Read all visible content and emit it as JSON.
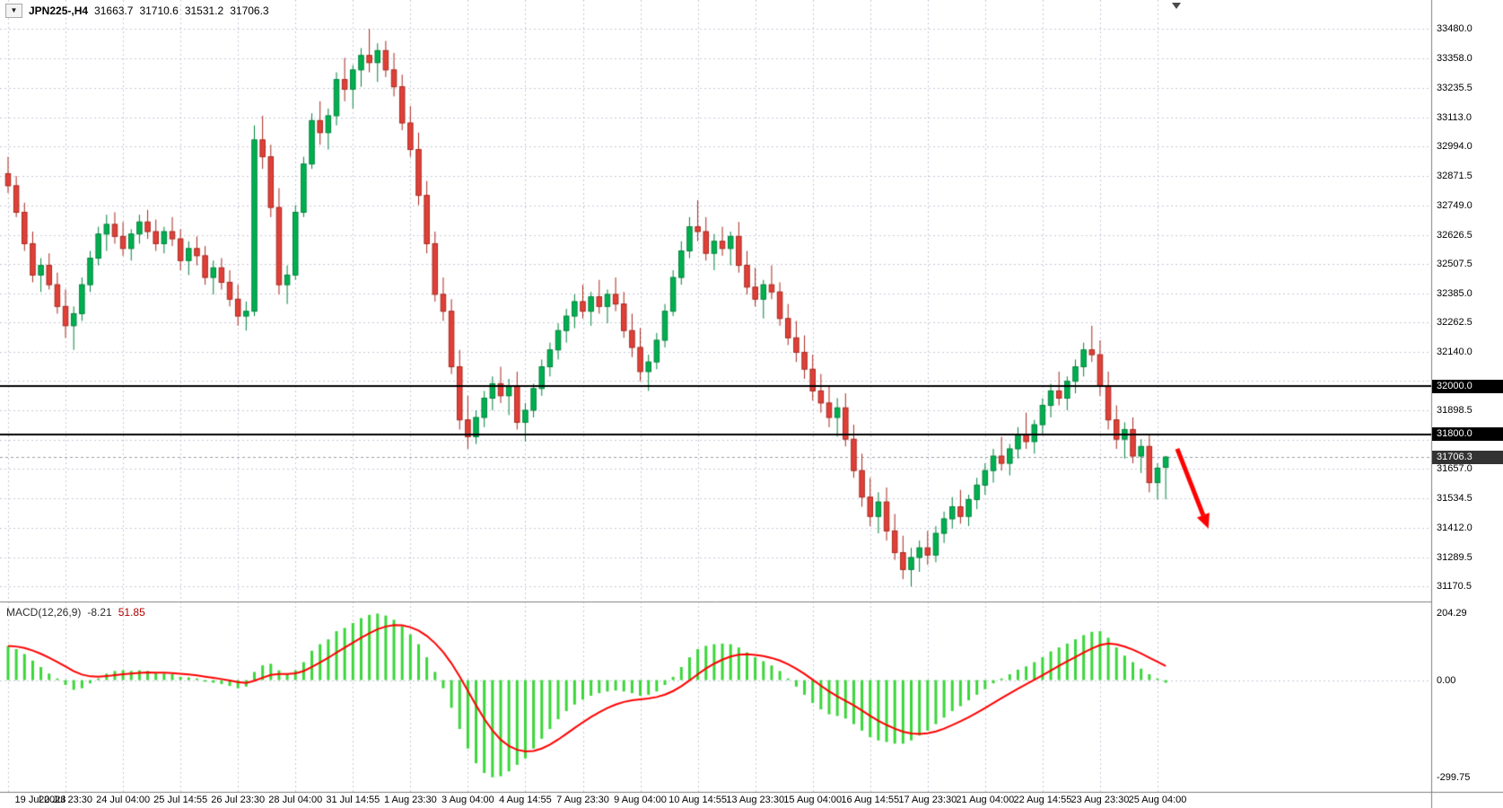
{
  "header": {
    "dropdown_icon": "▼",
    "symbol_period": "JPN225-,H4",
    "open": "31663.7",
    "high": "31710.6",
    "low": "31531.2",
    "close": "31706.3"
  },
  "indicator": {
    "name": "MACD(12,26,9)",
    "value": "-8.21",
    "signal": "51.85"
  },
  "colors": {
    "background": "#ffffff",
    "grid": "#c9c9da",
    "bull": "#00b050",
    "bear": "#e04038",
    "bull_border": "#00843c",
    "bear_border": "#a8281e",
    "macd_histogram": "#3bd63b",
    "macd_signal": "#ff0000",
    "price_line": "#000000",
    "current_price_line": "#9aa0a8",
    "line_tag_background": "#000000",
    "current_tag_background": "#333333",
    "tag_text": "#ffffff",
    "separator": "#808080",
    "arrow": "#ff0000"
  },
  "chart_data": {
    "type": "candlestick",
    "symbol": "JPN225-",
    "timeframe": "H4",
    "title": "JPN225-,H4 31663.7 31710.6 31531.2 31706.3",
    "ylim": [
      31115,
      33540
    ],
    "macd_ylim": [
      -340,
      230
    ],
    "grid": true,
    "y_ticks": [
      33480.0,
      33358.0,
      33235.5,
      33113.0,
      32994.0,
      32871.5,
      32749.0,
      32626.5,
      32507.5,
      32385.0,
      32262.5,
      32140.0,
      32021.5,
      31898.5,
      31776.0,
      31657.0,
      31534.5,
      31412.0,
      31289.5,
      31170.5
    ],
    "x_labels": [
      {
        "i": 0,
        "t": "19 Jul 2023"
      },
      {
        "i": 7,
        "t": "20 Jul 23:30"
      },
      {
        "i": 14,
        "t": "24 Jul 04:00"
      },
      {
        "i": 21,
        "t": "25 Jul 14:55"
      },
      {
        "i": 28,
        "t": "26 Jul 23:30"
      },
      {
        "i": 35,
        "t": "28 Jul 04:00"
      },
      {
        "i": 42,
        "t": "31 Jul 14:55"
      },
      {
        "i": 49,
        "t": "1 Aug 23:30"
      },
      {
        "i": 56,
        "t": "3 Aug 04:00"
      },
      {
        "i": 63,
        "t": "4 Aug 14:55"
      },
      {
        "i": 70,
        "t": "7 Aug 23:30"
      },
      {
        "i": 77,
        "t": "9 Aug 04:00"
      },
      {
        "i": 84,
        "t": "10 Aug 14:55"
      },
      {
        "i": 91,
        "t": "13 Aug 23:30"
      },
      {
        "i": 98,
        "t": "15 Aug 04:00"
      },
      {
        "i": 105,
        "t": "16 Aug 14:55"
      },
      {
        "i": 112,
        "t": "17 Aug 23:30"
      },
      {
        "i": 119,
        "t": "21 Aug 04:00"
      },
      {
        "i": 126,
        "t": "22 Aug 14:55"
      },
      {
        "i": 133,
        "t": "23 Aug 23:30"
      },
      {
        "i": 140,
        "t": "25 Aug 04:00"
      }
    ],
    "price_lines": [
      {
        "price": 32000.0,
        "label": "32000.0"
      },
      {
        "price": 31800.0,
        "label": "31800.0"
      }
    ],
    "current_price": {
      "price": 31706.3,
      "label": "31706.3"
    },
    "candles": [
      [
        32880,
        32950,
        32800,
        32830
      ],
      [
        32830,
        32870,
        32700,
        32720
      ],
      [
        32720,
        32760,
        32560,
        32590
      ],
      [
        32590,
        32640,
        32430,
        32460
      ],
      [
        32460,
        32530,
        32390,
        32500
      ],
      [
        32500,
        32550,
        32400,
        32420
      ],
      [
        32420,
        32470,
        32300,
        32330
      ],
      [
        32330,
        32400,
        32200,
        32250
      ],
      [
        32250,
        32330,
        32150,
        32300
      ],
      [
        32300,
        32450,
        32270,
        32420
      ],
      [
        32420,
        32560,
        32390,
        32530
      ],
      [
        32530,
        32660,
        32500,
        32630
      ],
      [
        32630,
        32710,
        32560,
        32670
      ],
      [
        32670,
        32720,
        32590,
        32620
      ],
      [
        32620,
        32680,
        32540,
        32570
      ],
      [
        32570,
        32650,
        32520,
        32630
      ],
      [
        32630,
        32710,
        32590,
        32680
      ],
      [
        32680,
        32730,
        32610,
        32640
      ],
      [
        32640,
        32690,
        32560,
        32590
      ],
      [
        32590,
        32660,
        32550,
        32640
      ],
      [
        32640,
        32700,
        32580,
        32610
      ],
      [
        32610,
        32650,
        32480,
        32520
      ],
      [
        32520,
        32600,
        32460,
        32570
      ],
      [
        32570,
        32620,
        32500,
        32540
      ],
      [
        32540,
        32580,
        32420,
        32450
      ],
      [
        32450,
        32520,
        32380,
        32490
      ],
      [
        32490,
        32530,
        32400,
        32430
      ],
      [
        32430,
        32480,
        32330,
        32360
      ],
      [
        32360,
        32420,
        32250,
        32290
      ],
      [
        32290,
        32350,
        32230,
        32310
      ],
      [
        32310,
        33080,
        32290,
        33020
      ],
      [
        33020,
        33120,
        32900,
        32950
      ],
      [
        32950,
        33000,
        32700,
        32740
      ],
      [
        32740,
        32820,
        32380,
        32420
      ],
      [
        32420,
        32500,
        32340,
        32460
      ],
      [
        32460,
        32750,
        32440,
        32720
      ],
      [
        32720,
        32950,
        32700,
        32920
      ],
      [
        32920,
        33130,
        32900,
        33100
      ],
      [
        33100,
        33180,
        33000,
        33050
      ],
      [
        33050,
        33150,
        32980,
        33120
      ],
      [
        33120,
        33300,
        33080,
        33270
      ],
      [
        33270,
        33360,
        33180,
        33230
      ],
      [
        33230,
        33330,
        33150,
        33310
      ],
      [
        33310,
        33400,
        33240,
        33370
      ],
      [
        33370,
        33480,
        33300,
        33340
      ],
      [
        33340,
        33420,
        33260,
        33390
      ],
      [
        33390,
        33430,
        33280,
        33310
      ],
      [
        33310,
        33380,
        33200,
        33240
      ],
      [
        33240,
        33290,
        33060,
        33090
      ],
      [
        33090,
        33160,
        32950,
        32980
      ],
      [
        32980,
        33050,
        32750,
        32790
      ],
      [
        32790,
        32850,
        32550,
        32590
      ],
      [
        32590,
        32640,
        32350,
        32380
      ],
      [
        32380,
        32450,
        32270,
        32310
      ],
      [
        32310,
        32360,
        32050,
        32080
      ],
      [
        32080,
        32150,
        31820,
        31860
      ],
      [
        31860,
        31960,
        31740,
        31790
      ],
      [
        31790,
        31900,
        31760,
        31870
      ],
      [
        31870,
        31980,
        31830,
        31950
      ],
      [
        31950,
        32040,
        31900,
        32010
      ],
      [
        32010,
        32080,
        31930,
        31960
      ],
      [
        31960,
        32030,
        31880,
        32000
      ],
      [
        32000,
        32060,
        31820,
        31850
      ],
      [
        31850,
        31930,
        31770,
        31900
      ],
      [
        31900,
        32010,
        31870,
        31990
      ],
      [
        31990,
        32110,
        31960,
        32080
      ],
      [
        32080,
        32180,
        32040,
        32150
      ],
      [
        32150,
        32260,
        32110,
        32230
      ],
      [
        32230,
        32320,
        32180,
        32290
      ],
      [
        32290,
        32380,
        32240,
        32350
      ],
      [
        32350,
        32420,
        32280,
        32310
      ],
      [
        32310,
        32390,
        32250,
        32370
      ],
      [
        32370,
        32440,
        32300,
        32330
      ],
      [
        32330,
        32400,
        32260,
        32380
      ],
      [
        32380,
        32450,
        32310,
        32340
      ],
      [
        32340,
        32390,
        32200,
        32230
      ],
      [
        32230,
        32300,
        32120,
        32160
      ],
      [
        32160,
        32240,
        32020,
        32060
      ],
      [
        32060,
        32130,
        31980,
        32100
      ],
      [
        32100,
        32220,
        32070,
        32190
      ],
      [
        32190,
        32340,
        32160,
        32310
      ],
      [
        32310,
        32480,
        32290,
        32450
      ],
      [
        32450,
        32600,
        32420,
        32560
      ],
      [
        32560,
        32700,
        32530,
        32660
      ],
      [
        32660,
        32770,
        32600,
        32640
      ],
      [
        32640,
        32700,
        32520,
        32550
      ],
      [
        32550,
        32630,
        32480,
        32600
      ],
      [
        32600,
        32660,
        32540,
        32570
      ],
      [
        32570,
        32640,
        32500,
        32620
      ],
      [
        32620,
        32680,
        32470,
        32500
      ],
      [
        32500,
        32560,
        32380,
        32410
      ],
      [
        32410,
        32490,
        32330,
        32360
      ],
      [
        32360,
        32440,
        32280,
        32420
      ],
      [
        32420,
        32500,
        32360,
        32390
      ],
      [
        32390,
        32430,
        32250,
        32280
      ],
      [
        32280,
        32340,
        32170,
        32200
      ],
      [
        32200,
        32270,
        32100,
        32140
      ],
      [
        32140,
        32210,
        32030,
        32070
      ],
      [
        32070,
        32130,
        31940,
        31980
      ],
      [
        31980,
        32050,
        31890,
        31930
      ],
      [
        31930,
        32000,
        31830,
        31870
      ],
      [
        31870,
        31950,
        31790,
        31910
      ],
      [
        31910,
        31970,
        31750,
        31780
      ],
      [
        31780,
        31840,
        31620,
        31650
      ],
      [
        31650,
        31720,
        31500,
        31540
      ],
      [
        31540,
        31620,
        31420,
        31460
      ],
      [
        31460,
        31560,
        31390,
        31520
      ],
      [
        31520,
        31580,
        31360,
        31400
      ],
      [
        31400,
        31470,
        31280,
        31310
      ],
      [
        31310,
        31380,
        31200,
        31240
      ],
      [
        31240,
        31330,
        31170,
        31290
      ],
      [
        31290,
        31360,
        31230,
        31330
      ],
      [
        31330,
        31400,
        31260,
        31300
      ],
      [
        31300,
        31420,
        31270,
        31390
      ],
      [
        31390,
        31480,
        31350,
        31450
      ],
      [
        31450,
        31540,
        31410,
        31500
      ],
      [
        31500,
        31570,
        31430,
        31460
      ],
      [
        31460,
        31550,
        31420,
        31530
      ],
      [
        31530,
        31620,
        31490,
        31590
      ],
      [
        31590,
        31680,
        31550,
        31650
      ],
      [
        31650,
        31740,
        31600,
        31710
      ],
      [
        31710,
        31790,
        31650,
        31680
      ],
      [
        31680,
        31760,
        31630,
        31740
      ],
      [
        31740,
        31830,
        31700,
        31800
      ],
      [
        31800,
        31890,
        31740,
        31770
      ],
      [
        31770,
        31860,
        31720,
        31840
      ],
      [
        31840,
        31950,
        31800,
        31920
      ],
      [
        31920,
        32010,
        31870,
        31980
      ],
      [
        31980,
        32060,
        31920,
        31950
      ],
      [
        31950,
        32040,
        31900,
        32020
      ],
      [
        32020,
        32110,
        31970,
        32080
      ],
      [
        32080,
        32180,
        32040,
        32150
      ],
      [
        32150,
        32250,
        32100,
        32130
      ],
      [
        32130,
        32190,
        31960,
        32000
      ],
      [
        32000,
        32060,
        31820,
        31860
      ],
      [
        31860,
        31920,
        31740,
        31780
      ],
      [
        31780,
        31850,
        31700,
        31820
      ],
      [
        31820,
        31870,
        31680,
        31710
      ],
      [
        31710,
        31780,
        31640,
        31750
      ],
      [
        31750,
        31800,
        31560,
        31600
      ],
      [
        31600,
        31680,
        31530,
        31660
      ],
      [
        31663.7,
        31710.6,
        31531.2,
        31706.3
      ]
    ],
    "macd": {
      "type": "histogram+line",
      "params": "12,26,9",
      "signal_period": 9,
      "y_ticks": [
        204.29,
        0.0,
        -299.75
      ],
      "histogram": [
        105,
        95,
        80,
        60,
        40,
        20,
        5,
        -15,
        -30,
        -25,
        -10,
        5,
        20,
        28,
        30,
        28,
        30,
        28,
        22,
        20,
        18,
        10,
        8,
        5,
        -5,
        -8,
        -12,
        -18,
        -25,
        -20,
        25,
        45,
        50,
        30,
        18,
        30,
        55,
        90,
        110,
        125,
        150,
        160,
        175,
        190,
        200,
        204,
        198,
        185,
        165,
        140,
        110,
        70,
        25,
        -25,
        -85,
        -150,
        -210,
        -255,
        -285,
        -298,
        -295,
        -280,
        -260,
        -240,
        -210,
        -180,
        -150,
        -120,
        -95,
        -75,
        -60,
        -48,
        -40,
        -35,
        -32,
        -35,
        -40,
        -48,
        -45,
        -35,
        -15,
        10,
        40,
        70,
        95,
        105,
        110,
        112,
        110,
        100,
        85,
        70,
        58,
        45,
        28,
        5,
        -20,
        -45,
        -70,
        -90,
        -105,
        -110,
        -118,
        -135,
        -155,
        -175,
        -185,
        -190,
        -195,
        -195,
        -185,
        -170,
        -155,
        -135,
        -115,
        -95,
        -80,
        -62,
        -45,
        -28,
        -10,
        5,
        18,
        32,
        42,
        55,
        70,
        88,
        100,
        112,
        125,
        138,
        148,
        150,
        130,
        100,
        75,
        55,
        35,
        18,
        5,
        -8.21
      ]
    },
    "annotations": [
      {
        "type": "arrow",
        "from": {
          "index": 142.4,
          "price": 31740
        },
        "to": {
          "index": 146.2,
          "price": 31410
        },
        "color": "#ff0000",
        "width": 5
      }
    ]
  }
}
